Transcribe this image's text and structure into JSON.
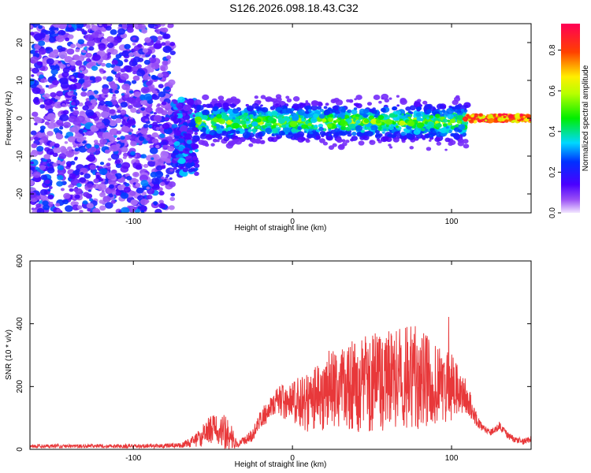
{
  "title": "S126.2026.098.18.43.C32",
  "chart_data": [
    {
      "type": "heatmap",
      "xlabel": "Height of straight line (km)",
      "ylabel": "Frequency (Hz)",
      "xlim": [
        -165,
        150
      ],
      "ylim": [
        -25,
        25
      ],
      "xticks": [
        -100,
        0,
        100
      ],
      "yticks": [
        -20,
        -10,
        0,
        10,
        20
      ],
      "colorbar": {
        "label": "Normalized spectral amplitude",
        "range": [
          0.0,
          0.93
        ],
        "ticks": [
          0.0,
          0.2,
          0.4,
          0.6,
          0.8
        ]
      },
      "regions": [
        {
          "name": "noise",
          "x_range": [
            -165,
            -75
          ],
          "freq_range": [
            -25,
            25
          ],
          "amplitude": [
            0.05,
            0.3
          ]
        },
        {
          "name": "transition",
          "x_range": [
            -75,
            -60
          ],
          "freq_range": [
            -15,
            5
          ],
          "amplitude": [
            0.1,
            0.35
          ]
        },
        {
          "name": "signal-band",
          "x_range": [
            -60,
            110
          ],
          "freq_center": -1,
          "freq_spread": [
            -8,
            8
          ],
          "amplitude": [
            0.1,
            0.6
          ]
        },
        {
          "name": "strong-tone",
          "x_range": [
            108,
            150
          ],
          "freq_center": 0,
          "amplitude": [
            0.6,
            0.93
          ]
        }
      ]
    },
    {
      "type": "line",
      "xlabel": "Height of straight line (km)",
      "ylabel": "SNR (10 * v/v)",
      "xlim": [
        -165,
        150
      ],
      "ylim": [
        0,
        600
      ],
      "xticks": [
        -100,
        0,
        100
      ],
      "yticks": [
        0,
        200,
        400,
        600
      ],
      "line_color": "#e8383a",
      "envelope": {
        "x": [
          -165,
          -100,
          -70,
          -60,
          -50,
          -40,
          -35,
          -25,
          -20,
          -10,
          0,
          10,
          20,
          30,
          40,
          50,
          60,
          70,
          75,
          80,
          90,
          100,
          105,
          110,
          115,
          120,
          125,
          130,
          135,
          140,
          145,
          150
        ],
        "base": [
          10,
          10,
          12,
          28,
          70,
          50,
          15,
          45,
          95,
          155,
          150,
          150,
          170,
          210,
          200,
          215,
          215,
          220,
          230,
          225,
          210,
          195,
          175,
          165,
          100,
          65,
          55,
          75,
          45,
          30,
          25,
          35
        ],
        "amp": [
          6,
          6,
          8,
          25,
          50,
          55,
          10,
          20,
          30,
          45,
          70,
          95,
          115,
          135,
          150,
          160,
          165,
          175,
          170,
          160,
          135,
          110,
          80,
          50,
          25,
          12,
          10,
          15,
          12,
          10,
          10,
          12
        ]
      }
    }
  ]
}
